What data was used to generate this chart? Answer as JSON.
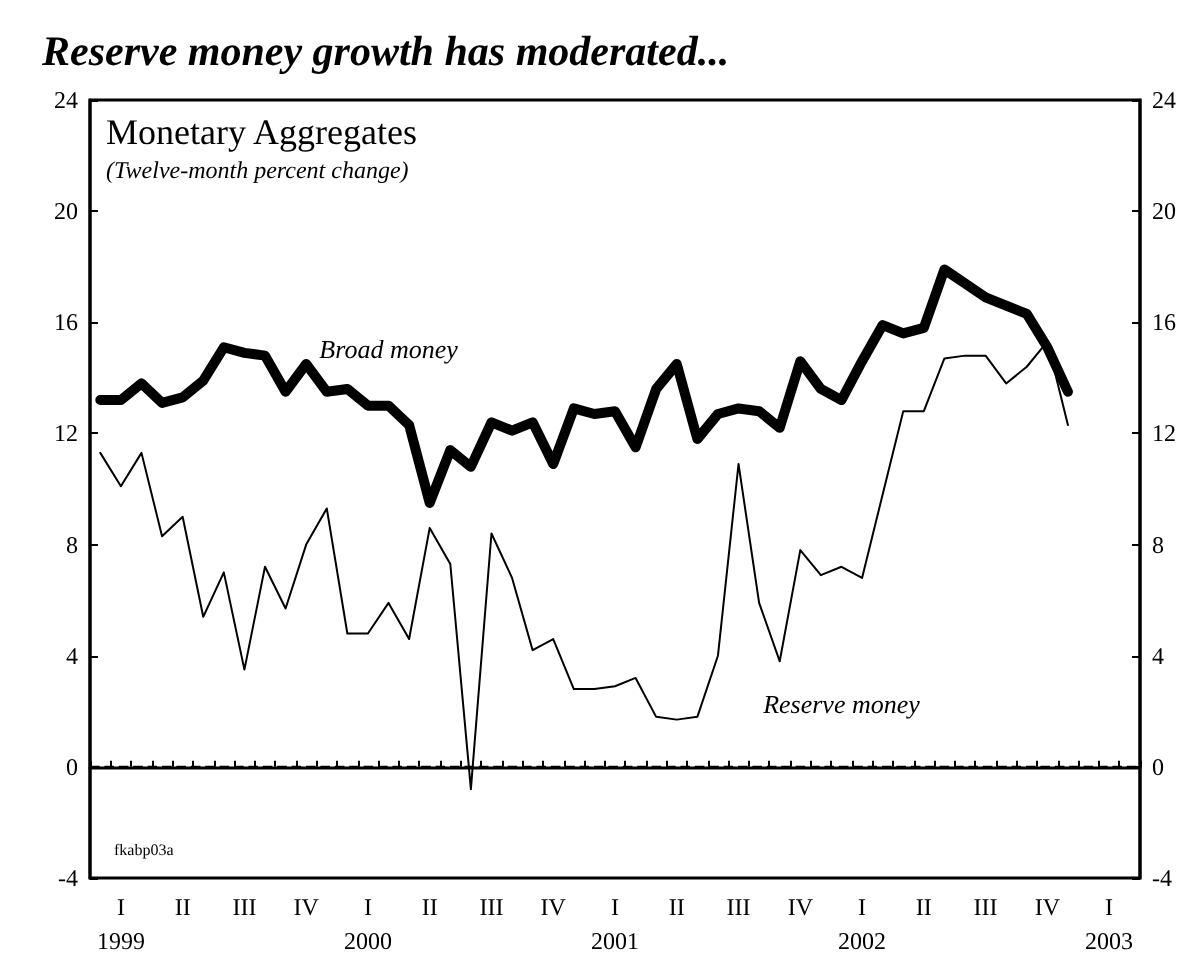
{
  "chart_data": {
    "type": "line",
    "title": "Reserve money growth has moderated...",
    "subtitle": "Monetary Aggregates",
    "ylabel": "(Twelve-month percent change)",
    "categories": [
      null,
      "I\n1999",
      null,
      null,
      "II",
      null,
      null,
      "III",
      null,
      null,
      "IV",
      null,
      null,
      "I\n2000",
      null,
      null,
      "II",
      null,
      null,
      "III",
      null,
      null,
      "IV",
      null,
      null,
      "I\n2001",
      null,
      null,
      "II",
      null,
      null,
      "III",
      null,
      null,
      "IV",
      null,
      null,
      "I\n2002",
      null,
      null,
      "II",
      null,
      null,
      "III",
      null,
      null,
      "IV",
      null,
      null,
      "I\n2003",
      null
    ],
    "series": [
      {
        "name": "Broad money",
        "color": "#000000",
        "values": [
          13.2,
          13.2,
          13.8,
          13.1,
          13.3,
          13.9,
          15.1,
          14.9,
          14.8,
          13.5,
          14.5,
          13.5,
          13.6,
          13.0,
          13.0,
          12.3,
          9.5,
          11.4,
          10.8,
          12.4,
          12.1,
          12.4,
          10.9,
          12.9,
          12.7,
          12.8,
          11.5,
          13.6,
          14.5,
          11.8,
          12.7,
          12.9,
          12.8,
          12.2,
          14.6,
          13.6,
          13.2,
          14.6,
          15.9,
          15.6,
          15.8,
          17.9,
          17.4,
          16.9,
          16.6,
          16.3,
          15.1,
          13.5,
          null,
          null,
          null
        ]
      },
      {
        "name": "Reserve money",
        "color": "#000000",
        "values": [
          11.3,
          10.1,
          11.3,
          8.3,
          9.0,
          5.4,
          7.0,
          3.5,
          7.2,
          5.7,
          8.0,
          9.3,
          4.8,
          4.8,
          5.9,
          4.6,
          8.6,
          7.3,
          -0.8,
          8.4,
          6.8,
          4.2,
          4.6,
          2.8,
          2.8,
          2.9,
          3.2,
          1.8,
          1.7,
          1.8,
          4.0,
          10.9,
          5.9,
          3.8,
          7.8,
          6.9,
          7.2,
          6.8,
          9.8,
          12.8,
          12.8,
          14.7,
          14.8,
          14.8,
          13.8,
          14.4,
          15.3,
          12.3,
          null,
          null,
          null
        ]
      }
    ],
    "ylim": [
      -4,
      24
    ],
    "yticks": [
      -4,
      0,
      4,
      8,
      12,
      16,
      20,
      24
    ],
    "y2lim": [
      -4,
      24
    ],
    "y2ticks": [
      -4,
      0,
      4,
      8,
      12,
      16,
      20,
      24
    ],
    "ref_lines": [
      {
        "axis": "y",
        "value": 0,
        "line_style": "dashed",
        "color": "#000000"
      }
    ],
    "annotations": [
      "fkabp03a"
    ],
    "grid": false,
    "legend": false,
    "marker": "none",
    "line_style": "solid"
  }
}
